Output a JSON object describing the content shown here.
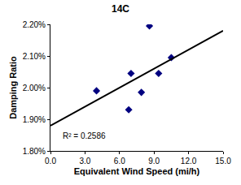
{
  "chart_data": {
    "type": "scatter",
    "title": "14C",
    "x_label": "Equivalent Wind Speed (mi/h)",
    "y_label": "Damping Ratio",
    "series": [
      {
        "type": "scatter",
        "marker": "diamond",
        "color": "#000080",
        "x": [
          4.0,
          6.8,
          7.0,
          7.9,
          8.6,
          9.4,
          10.5
        ],
        "values": [
          1.99,
          1.93,
          2.045,
          1.985,
          2.195,
          2.045,
          2.095
        ]
      },
      {
        "type": "line",
        "line_style": "solid",
        "color": "#000000",
        "x": [
          0,
          15
        ],
        "values": [
          1.88,
          2.18
        ]
      }
    ],
    "annotations": [
      "R² = 0.2586"
    ],
    "xlim": [
      0,
      15
    ],
    "xticks": [
      {
        "value": 0,
        "label": "0.0"
      },
      {
        "value": 3,
        "label": "3.0"
      },
      {
        "value": 6,
        "label": "6.0"
      },
      {
        "value": 9,
        "label": "9.0"
      },
      {
        "value": 12,
        "label": "12.0"
      },
      {
        "value": 15,
        "label": "15.0"
      }
    ],
    "ylim": [
      1.8,
      2.2
    ],
    "yticks": [
      {
        "value": 1.8,
        "label": "1.80%"
      },
      {
        "value": 1.9,
        "label": "1.90%"
      },
      {
        "value": 2.0,
        "label": "2.00%"
      },
      {
        "value": 2.1,
        "label": "2.10%"
      },
      {
        "value": 2.2,
        "label": "2.20%"
      }
    ],
    "grid": false
  }
}
